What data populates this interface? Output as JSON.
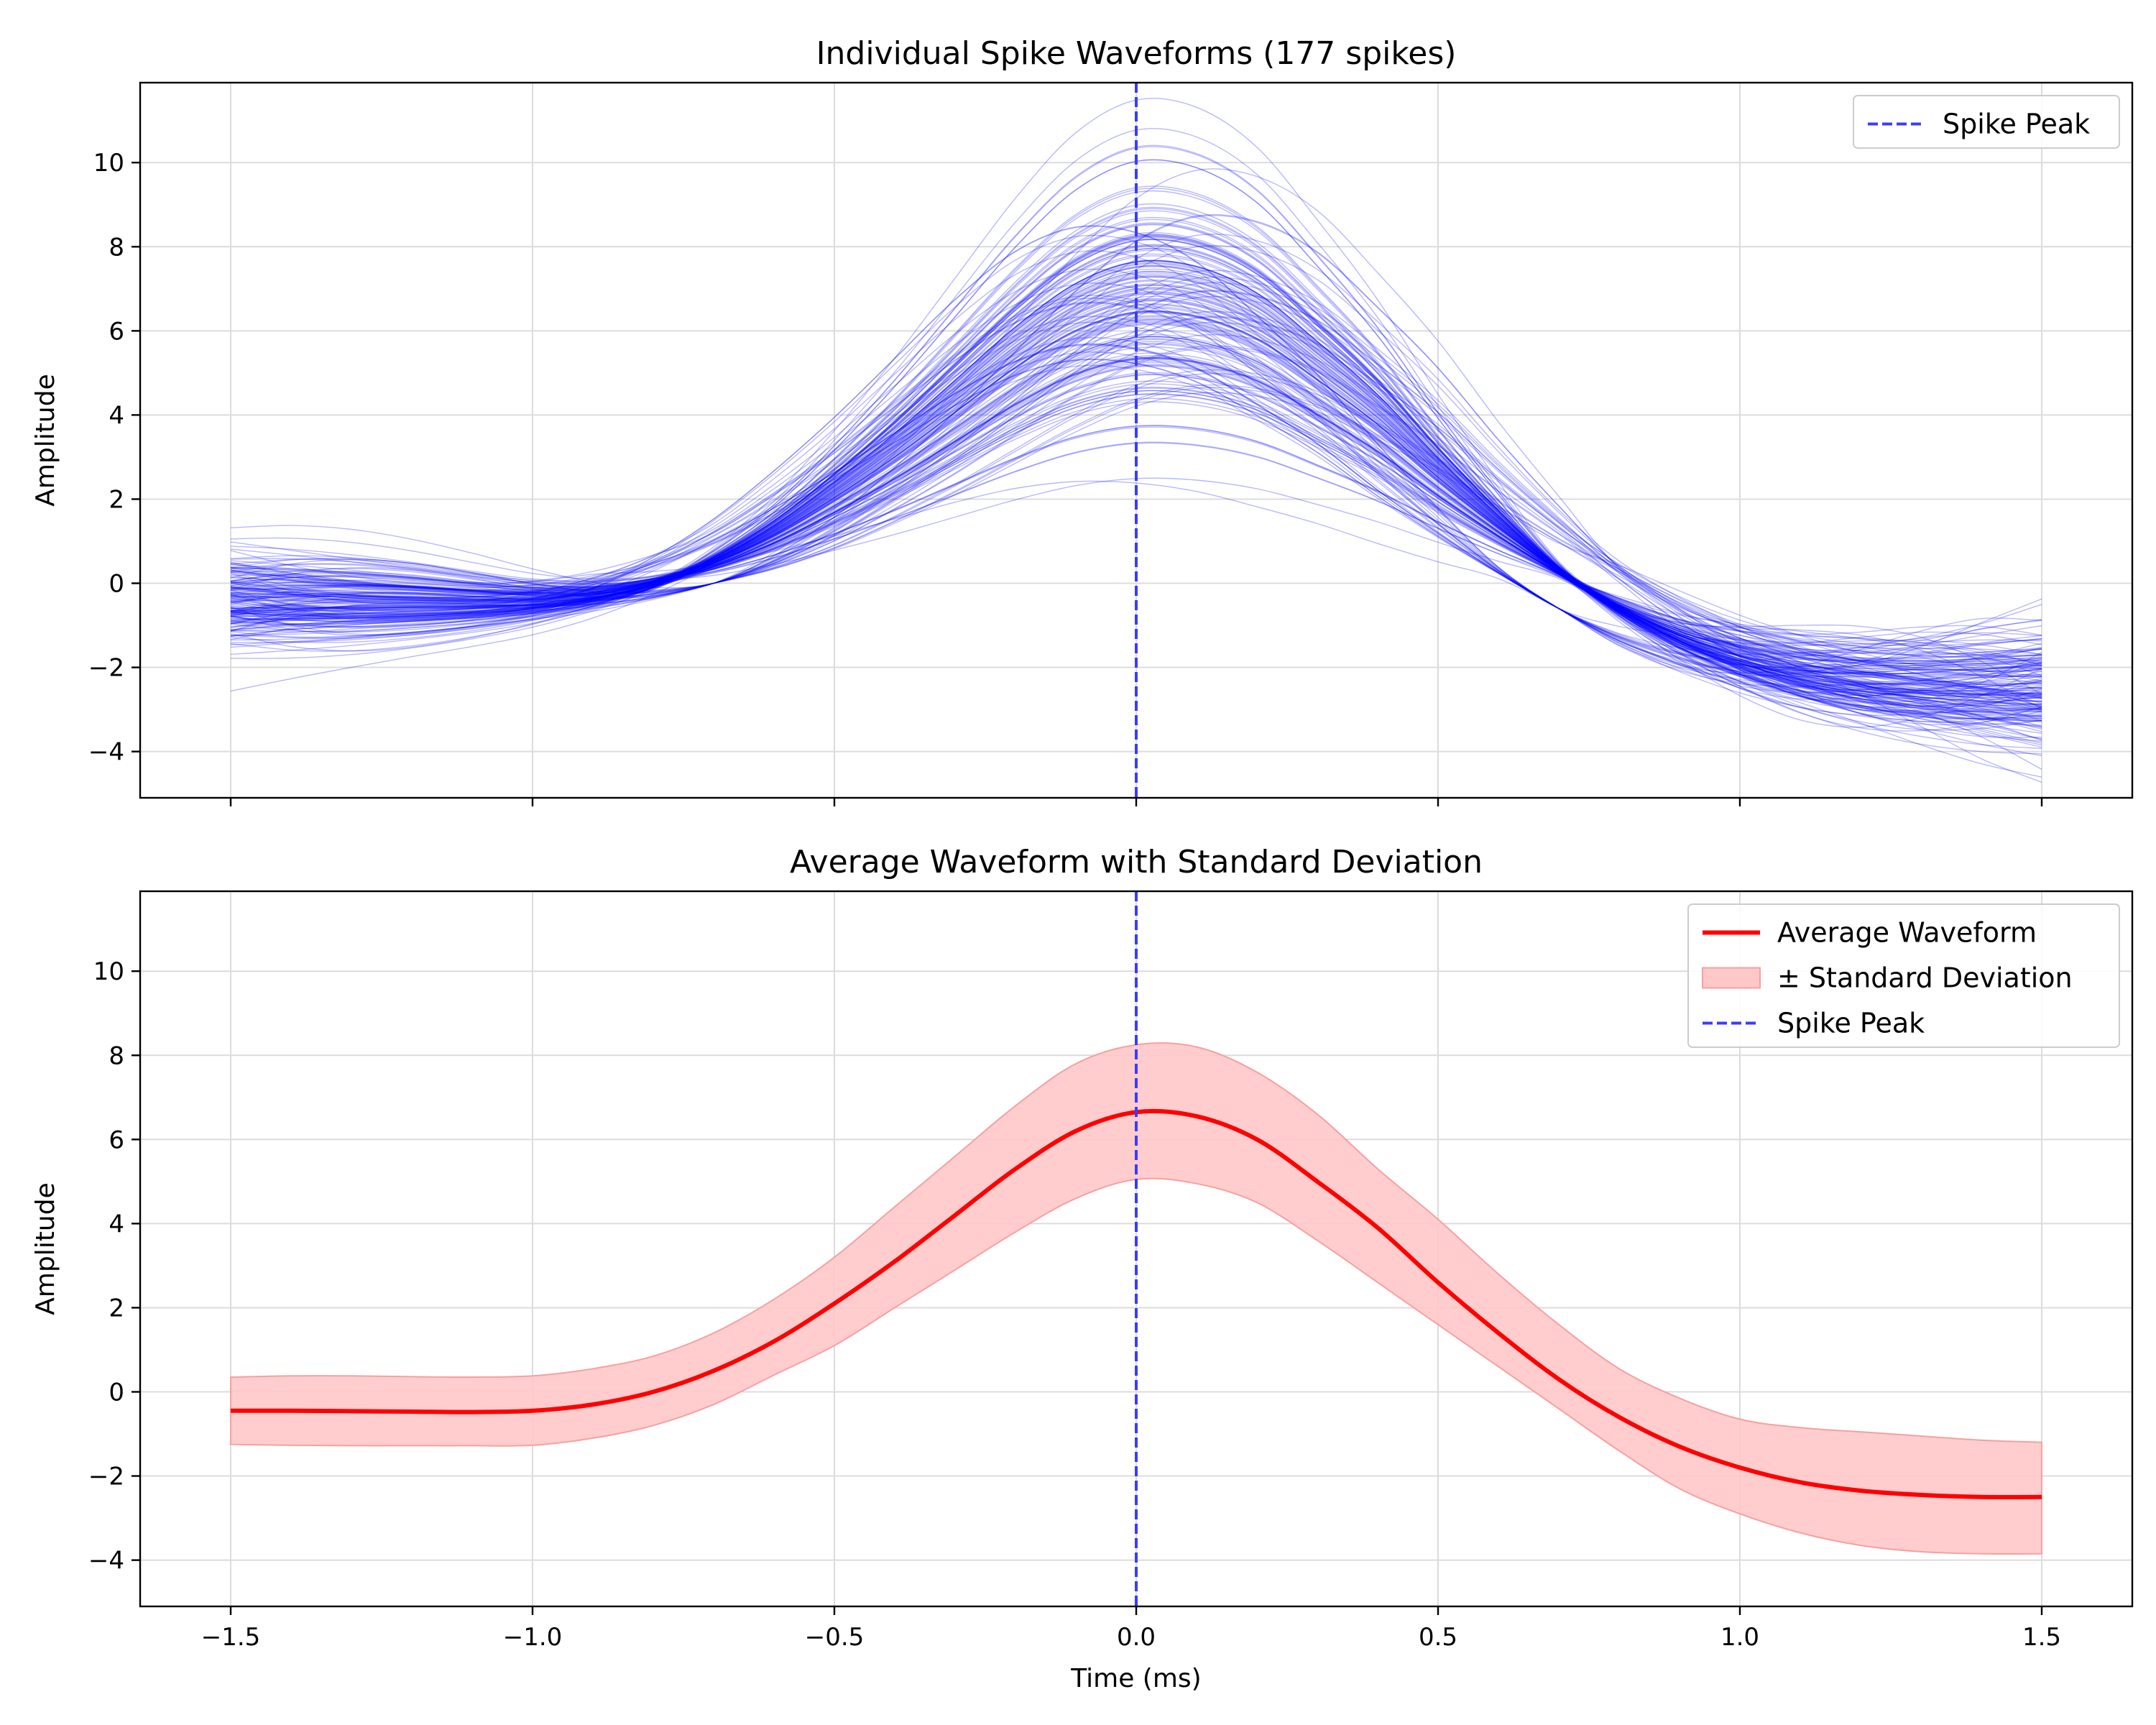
{
  "chart_data": [
    {
      "type": "line",
      "title": "Individual Spike Waveforms (177 spikes)",
      "xlabel": "",
      "ylabel": "Amplitude",
      "xlim": [
        -1.65,
        1.65
      ],
      "ylim": [
        -5.1,
        11.9
      ],
      "xticks": [
        -1.5,
        -1.0,
        -0.5,
        0.0,
        0.5,
        1.0,
        1.5
      ],
      "xtick_labels_visible": false,
      "yticks": [
        -4,
        -2,
        0,
        2,
        4,
        6,
        8,
        10
      ],
      "ytick_labels": [
        "−4",
        "−2",
        "0",
        "2",
        "4",
        "6",
        "8",
        "10"
      ],
      "grid": true,
      "legend_position": "top-right",
      "legend": [
        {
          "label": "Spike Peak",
          "style": "dashed",
          "color": "#3b3bff"
        }
      ],
      "spike_count": 177,
      "colors": {
        "trace": "#0000ff",
        "peak_line": "#3b3bff"
      },
      "spike_peak_x": 0.0,
      "trace_time_range": [
        -1.5,
        1.5
      ],
      "trace_stats": {
        "mean_peak_amplitude": 6.6,
        "max_peak_amplitude": 11.4,
        "min_peak_amplitude": 2.4,
        "trough_at_end": -3.0,
        "baseline_start": -0.4
      }
    },
    {
      "type": "area",
      "title": "Average Waveform with Standard Deviation",
      "xlabel": "Time (ms)",
      "ylabel": "Amplitude",
      "xlim": [
        -1.65,
        1.65
      ],
      "ylim": [
        -5.1,
        11.9
      ],
      "xticks": [
        -1.5,
        -1.0,
        -0.5,
        0.0,
        0.5,
        1.0,
        1.5
      ],
      "xtick_labels": [
        "−1.5",
        "−1.0",
        "−0.5",
        "0.0",
        "0.5",
        "1.0",
        "1.5"
      ],
      "yticks": [
        -4,
        -2,
        0,
        2,
        4,
        6,
        8,
        10
      ],
      "ytick_labels": [
        "−4",
        "−2",
        "0",
        "2",
        "4",
        "6",
        "8",
        "10"
      ],
      "grid": true,
      "legend_position": "top-right",
      "legend": [
        {
          "label": "Average Waveform",
          "style": "line",
          "color": "#ff0000"
        },
        {
          "label": "± Standard Deviation",
          "style": "patch",
          "color": "#ffc8c8"
        },
        {
          "label": "Spike Peak",
          "style": "dashed",
          "color": "#3b3bff"
        }
      ],
      "colors": {
        "mean": "#ff0000",
        "band_fill": "#ffc8c8",
        "band_edge": "#f7a0a0",
        "peak_line": "#3b3bff"
      },
      "spike_peak_x": 0.0,
      "x": [
        -1.5,
        -1.4,
        -1.3,
        -1.2,
        -1.1,
        -1.0,
        -0.9,
        -0.8,
        -0.7,
        -0.6,
        -0.5,
        -0.4,
        -0.3,
        -0.2,
        -0.1,
        0.0,
        0.1,
        0.2,
        0.3,
        0.4,
        0.5,
        0.6,
        0.7,
        0.8,
        0.9,
        1.0,
        1.1,
        1.2,
        1.3,
        1.4,
        1.5
      ],
      "series": [
        {
          "name": "Average Waveform",
          "values": [
            -0.45,
            -0.45,
            -0.46,
            -0.47,
            -0.48,
            -0.45,
            -0.3,
            0.0,
            0.5,
            1.2,
            2.1,
            3.1,
            4.2,
            5.3,
            6.2,
            6.65,
            6.55,
            6.0,
            5.0,
            3.9,
            2.6,
            1.4,
            0.3,
            -0.6,
            -1.3,
            -1.8,
            -2.15,
            -2.35,
            -2.45,
            -2.5,
            -2.5
          ]
        },
        {
          "name": "± Standard Deviation (upper)",
          "values": [
            0.35,
            0.38,
            0.38,
            0.36,
            0.35,
            0.38,
            0.55,
            0.85,
            1.4,
            2.2,
            3.2,
            4.4,
            5.6,
            6.8,
            7.8,
            8.25,
            8.2,
            7.6,
            6.6,
            5.3,
            4.1,
            2.8,
            1.6,
            0.55,
            -0.15,
            -0.65,
            -0.85,
            -0.95,
            -1.05,
            -1.15,
            -1.2
          ]
        },
        {
          "name": "± Standard Deviation (lower)",
          "values": [
            -1.25,
            -1.27,
            -1.28,
            -1.28,
            -1.28,
            -1.27,
            -1.1,
            -0.8,
            -0.3,
            0.4,
            1.1,
            2.0,
            2.9,
            3.8,
            4.6,
            5.05,
            4.95,
            4.5,
            3.6,
            2.6,
            1.6,
            0.6,
            -0.4,
            -1.4,
            -2.3,
            -2.9,
            -3.35,
            -3.65,
            -3.8,
            -3.85,
            -3.85
          ]
        }
      ]
    }
  ]
}
